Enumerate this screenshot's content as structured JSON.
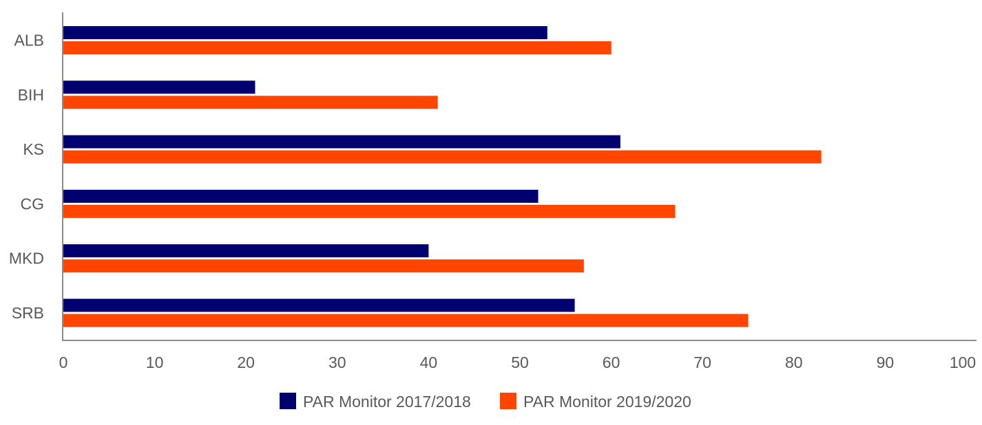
{
  "chart_data": {
    "type": "bar",
    "orientation": "horizontal",
    "categories": [
      "ALB",
      "BIH",
      "KS",
      "CG",
      "MKD",
      "SRB"
    ],
    "series": [
      {
        "name": "PAR Monitor 2017/2018",
        "color": "#00006E",
        "values": [
          53,
          21,
          61,
          52,
          40,
          56
        ]
      },
      {
        "name": "PAR Monitor 2019/2020",
        "color": "#FF4500",
        "values": [
          60,
          41,
          83,
          67,
          57,
          75
        ]
      }
    ],
    "xlim": [
      0,
      100
    ],
    "x_ticks": [
      "0",
      "10",
      "20",
      "30",
      "40",
      "50",
      "60",
      "70",
      "80",
      "90",
      "100"
    ],
    "grid": false,
    "legend_position": "bottom"
  }
}
